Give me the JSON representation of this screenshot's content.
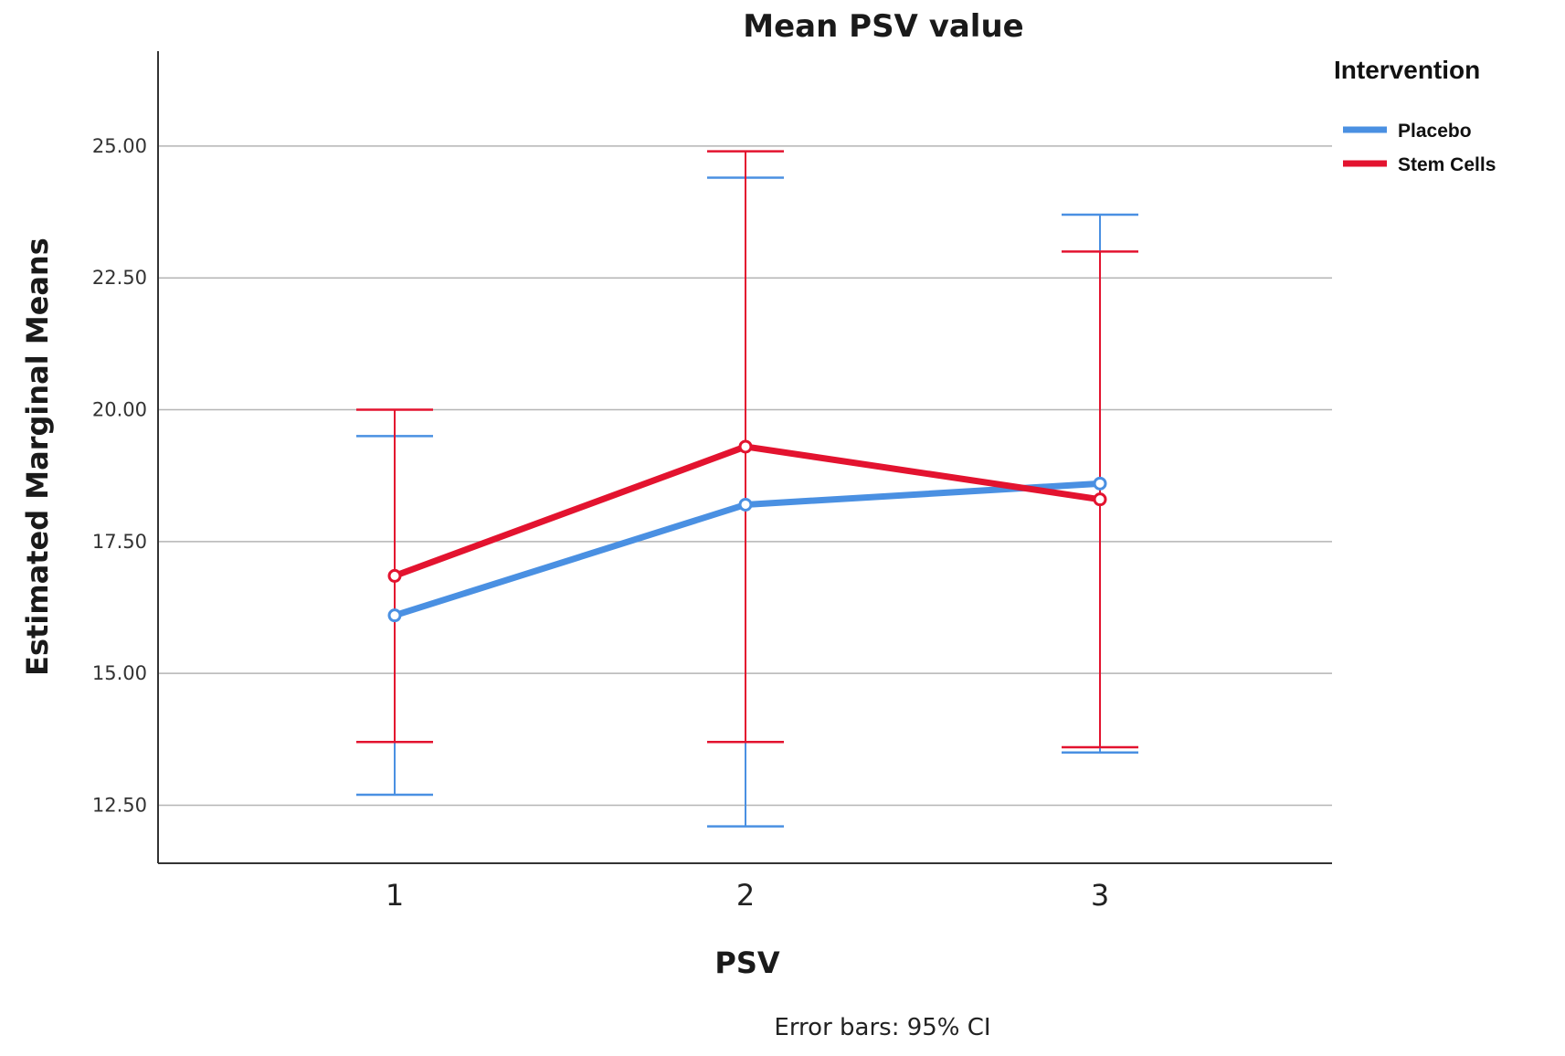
{
  "chart_data": {
    "type": "line",
    "title": "Mean PSV value",
    "xlabel": "PSV",
    "ylabel": "Estimated Marginal Means",
    "categories": [
      "1",
      "2",
      "3"
    ],
    "y_ticks": [
      "12.50",
      "15.00",
      "17.50",
      "20.00",
      "22.50",
      "25.00"
    ],
    "ylim": [
      11.4,
      26.8
    ],
    "legend_title": "Intervention",
    "legend_position": "top-right",
    "grid": true,
    "note": "Error bars: 95% CI",
    "series": [
      {
        "name": "Placebo",
        "color": "#4a90e2",
        "values": [
          16.1,
          18.2,
          18.6
        ],
        "ci_low": [
          12.7,
          12.1,
          13.5
        ],
        "ci_high": [
          19.5,
          24.4,
          23.7
        ]
      },
      {
        "name": "Stem Cells",
        "color": "#e3132f",
        "values": [
          16.85,
          19.3,
          18.3
        ],
        "ci_low": [
          13.7,
          13.7,
          13.6
        ],
        "ci_high": [
          20.0,
          24.9,
          23.0
        ]
      }
    ]
  }
}
